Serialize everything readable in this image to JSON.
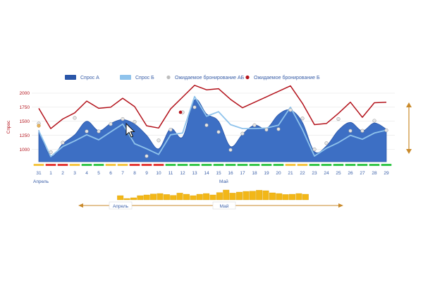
{
  "legend": {
    "demand_a": "Спрос А",
    "demand_b": "Спрос Б",
    "expected_ab": "Ожидаемое бронирование АБ",
    "expected_b": "Ожидаемое бронирование Б"
  },
  "colors": {
    "demand_a_fill": "#3d6fc4",
    "demand_a_edge": "#2a56a8",
    "demand_b_line": "#8fc3ec",
    "booking_red": "#b3121b",
    "dot_grey": "#bdbdbd",
    "dot_orange": "#e7b45a",
    "axis_text": "#3a5fa8",
    "bar_gold": "#f2b718",
    "range_line": "#c98a2b",
    "status_green": "#35c64a",
    "status_red": "#e53935",
    "status_yellow": "#f5c542"
  },
  "x_labels": [
    "31",
    "1",
    "2",
    "3",
    "4",
    "5",
    "6",
    "7",
    "8",
    "9",
    "10",
    "11",
    "12",
    "13",
    "14",
    "15",
    "16",
    "17",
    "18",
    "19",
    "20",
    "21",
    "22",
    "23",
    "24",
    "25",
    "26",
    "27",
    "28",
    "29"
  ],
  "month_labels": {
    "april": "Апрель",
    "may": "Май"
  },
  "chart_data": {
    "type": "area",
    "ylabel": "Спрос",
    "y_ticks": [
      "1000",
      "1250",
      "1500",
      "1750",
      "2000"
    ],
    "ylim": [
      780,
      2150
    ],
    "categories": [
      "31",
      "1",
      "2",
      "3",
      "4",
      "5",
      "6",
      "7",
      "8",
      "9",
      "10",
      "11",
      "12",
      "13",
      "14",
      "15",
      "16",
      "17",
      "18",
      "19",
      "20",
      "21",
      "22",
      "23",
      "24",
      "25",
      "26",
      "27",
      "28",
      "29"
    ],
    "series": [
      {
        "name": "Спрос А",
        "kind": "area",
        "values": [
          1340,
          880,
          1100,
          1260,
          1500,
          1330,
          1460,
          1530,
          1450,
          1250,
          1010,
          1370,
          1220,
          1880,
          1630,
          1500,
          1050,
          1270,
          1430,
          1370,
          1620,
          1700,
          1480,
          960,
          1060,
          1340,
          1480,
          1330,
          1470,
          1360
        ]
      },
      {
        "name": "Спрос Б",
        "kind": "line",
        "values": [
          1330,
          870,
          1050,
          1150,
          1260,
          1170,
          1310,
          1450,
          1100,
          1010,
          910,
          1260,
          1290,
          1940,
          1590,
          1670,
          1440,
          1370,
          1370,
          1380,
          1430,
          1750,
          1350,
          880,
          1020,
          1120,
          1250,
          1180,
          1290,
          1340
        ]
      },
      {
        "name": "Ожидаемое бронирование Б",
        "kind": "line",
        "values": [
          1730,
          1370,
          1540,
          1650,
          1860,
          1730,
          1750,
          1910,
          1760,
          1420,
          1380,
          1720,
          1930,
          2140,
          2060,
          2080,
          1890,
          1740,
          null,
          null,
          null,
          2130,
          1820,
          1440,
          1460,
          1640,
          1840,
          1570,
          1830,
          1840
        ]
      },
      {
        "name": "Ожидаемое бронирование АБ",
        "kind": "scatter",
        "values": [
          1460,
          950,
          1120,
          1560,
          1320,
          1320,
          1450,
          1540,
          1490,
          880,
          1160,
          1350,
          1660,
          1750,
          1430,
          1310,
          990,
          1280,
          1430,
          1350,
          1360,
          1700,
          1550,
          1000,
          1110,
          1540,
          1330,
          1330,
          1510,
          1340
        ]
      }
    ],
    "status_strip": [
      "yellow",
      "red",
      "red",
      "yellow",
      "green",
      "green",
      "yellow",
      "yellow",
      "red",
      "red",
      "red",
      "green",
      "green",
      "green",
      "green",
      "green",
      "green",
      "green",
      "green",
      "green",
      "green",
      "yellow",
      "yellow",
      "green",
      "green",
      "green",
      "green",
      "green",
      "green",
      "green"
    ]
  },
  "navigator": {
    "values": [
      30,
      10,
      15,
      30,
      35,
      42,
      45,
      38,
      32,
      48,
      40,
      30,
      40,
      45,
      35,
      52,
      70,
      48,
      55,
      60,
      62,
      68,
      65,
      50,
      45,
      38,
      40,
      45,
      40
    ],
    "april_label": "Апрель",
    "may_label": "Май"
  }
}
